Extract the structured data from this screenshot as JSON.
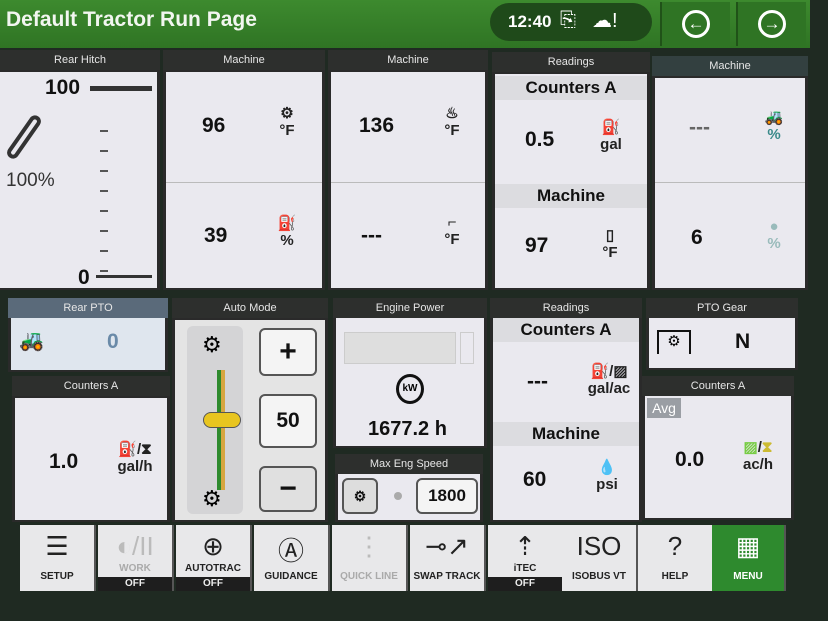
{
  "header": {
    "title": "Default Tractor Run Page",
    "time": "12:40",
    "icons": [
      "document-download-icon",
      "cloud-alert-icon"
    ],
    "back_icon": "arrow-left-icon",
    "forward_icon": "arrow-right-icon"
  },
  "rear_hitch": {
    "label": "Rear Hitch",
    "top": "100",
    "percent": "100%",
    "bottom": "0"
  },
  "m1": {
    "label": "Machine",
    "v1": "96",
    "u1": "°F",
    "i1": "transmission-oil-temp-icon",
    "v2": "39",
    "u2": "%",
    "i2": "fuel-level-icon"
  },
  "m2": {
    "label": "Machine",
    "v1": "136",
    "u1": "°F",
    "i1": "engine-coolant-temp-icon",
    "v2": "---",
    "u2": "°F",
    "i2": "exhaust-temp-icon"
  },
  "r1": {
    "label": "Readings",
    "sub1": "Counters A",
    "v1": "0.5",
    "u1": "gal",
    "i1": "fuel-used-icon",
    "sub2": "Machine",
    "v2": "97",
    "u2": "°F",
    "i2": "hydraulic-oil-temp-icon"
  },
  "m3": {
    "label": "Machine",
    "v1": "---",
    "u1": "%",
    "i1": "wheel-slip-icon",
    "v2": "6",
    "u2": "%",
    "i2": "def-level-icon"
  },
  "rear_pto": {
    "label": "Rear PTO",
    "value": "0"
  },
  "counters_left": {
    "label": "Counters A",
    "value": "1.0",
    "unit": "gal/h"
  },
  "auto_mode": {
    "label": "Auto Mode",
    "value": "50",
    "plus": "+",
    "minus": "−",
    "level_percent": 50
  },
  "engine_power": {
    "label": "Engine Power",
    "hours": "1677.2 h",
    "max_label": "Max Eng Speed",
    "max_value": "1800"
  },
  "r2": {
    "label": "Readings",
    "sub1": "Counters A",
    "v1": "---",
    "u1": "gal/ac",
    "sub2": "Machine",
    "v2": "60",
    "u2": "psi"
  },
  "pto_gear": {
    "label": "PTO Gear",
    "value": "N"
  },
  "counters_right": {
    "label": "Counters A",
    "avg": "Avg",
    "value": "0.0",
    "unit": "ac/h"
  },
  "bottom": [
    {
      "label": "SETUP",
      "icon": "checklist-icon"
    },
    {
      "label": "WORK",
      "state": "OFF",
      "icon": "work-pause-icon"
    },
    {
      "label": "AUTOTRAC",
      "state": "OFF",
      "icon": "autotrac-icon"
    },
    {
      "label": "GUIDANCE",
      "icon": "guidance-icon"
    },
    {
      "label": "QUICK LINE",
      "icon": "quick-line-icon"
    },
    {
      "label": "SWAP TRACK",
      "icon": "swap-track-icon"
    },
    {
      "label": "iTEC",
      "state": "OFF",
      "icon": "itec-icon"
    },
    {
      "label": "ISOBUS VT",
      "icon": "iso-icon",
      "glyph": "ISO"
    },
    {
      "label": "HELP",
      "icon": "help-icon",
      "glyph": "?"
    },
    {
      "label": "MENU",
      "icon": "grid-menu-icon",
      "glyph": "▦"
    }
  ]
}
